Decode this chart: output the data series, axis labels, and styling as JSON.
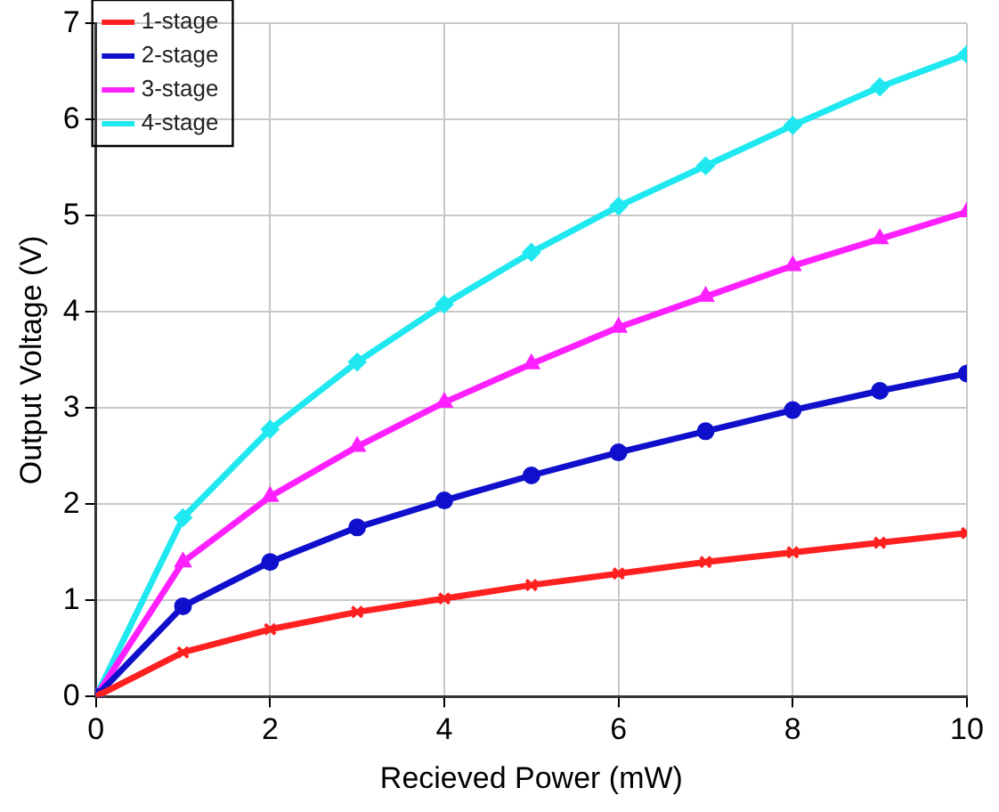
{
  "chart_data": {
    "type": "line",
    "xlabel": "Recieved Power (mW)",
    "ylabel": "Output Voltage (V)",
    "x": [
      0,
      1,
      2,
      3,
      4,
      5,
      6,
      7,
      8,
      9,
      10
    ],
    "series": [
      {
        "name": "1-stage",
        "color": "#ff2020",
        "marker": "cross",
        "values": [
          0,
          0.46,
          0.7,
          0.88,
          1.02,
          1.16,
          1.28,
          1.4,
          1.5,
          1.6,
          1.7
        ]
      },
      {
        "name": "2-stage",
        "color": "#1010cc",
        "marker": "circle",
        "values": [
          0,
          0.94,
          1.4,
          1.76,
          2.04,
          2.3,
          2.54,
          2.76,
          2.98,
          3.18,
          3.36
        ]
      },
      {
        "name": "3-stage",
        "color": "#ff20ff",
        "marker": "triangle",
        "values": [
          0,
          1.4,
          2.08,
          2.6,
          3.06,
          3.46,
          3.84,
          4.16,
          4.48,
          4.76,
          5.04
        ]
      },
      {
        "name": "4-stage",
        "color": "#20e8f0",
        "marker": "diamond",
        "values": [
          0,
          1.86,
          2.78,
          3.48,
          4.08,
          4.62,
          5.1,
          5.52,
          5.94,
          6.34,
          6.68
        ]
      }
    ],
    "xlim": [
      0,
      10
    ],
    "xticks": [
      0,
      2,
      4,
      6,
      8,
      10
    ],
    "ylim": [
      0,
      7
    ],
    "yticks": [
      0,
      1,
      2,
      3,
      4,
      5,
      6,
      7
    ],
    "grid": true,
    "legend": "top left",
    "line_style": "solid"
  }
}
